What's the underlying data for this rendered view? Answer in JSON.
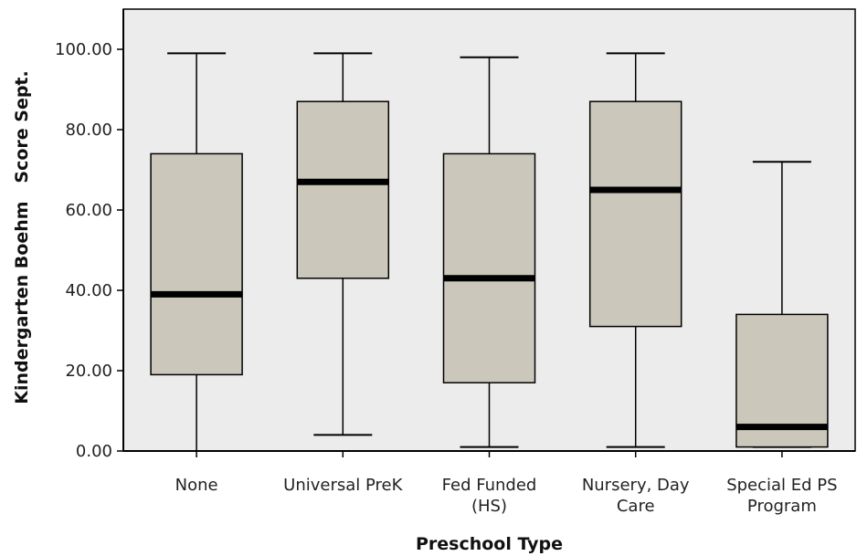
{
  "chart_data": {
    "type": "boxplot",
    "xlabel": "Preschool Type",
    "ylabel": "Kindergarten Boehm   Score Sept.",
    "ylim": [
      0,
      110
    ],
    "yticks": [
      "0.00",
      "20.00",
      "40.00",
      "60.00",
      "80.00",
      "100.00"
    ],
    "grid": false,
    "categories": [
      [
        "None"
      ],
      [
        "Universal PreK"
      ],
      [
        "Fed Funded",
        "(HS)"
      ],
      [
        "Nursery, Day",
        "Care"
      ],
      [
        "Special Ed PS",
        "Program"
      ]
    ],
    "boxes": [
      {
        "min": 0,
        "q1": 19,
        "median": 39,
        "q3": 74,
        "max": 99
      },
      {
        "min": 4,
        "q1": 43,
        "median": 67,
        "q3": 87,
        "max": 99
      },
      {
        "min": 1,
        "q1": 17,
        "median": 43,
        "q3": 74,
        "max": 98
      },
      {
        "min": 1,
        "q1": 31,
        "median": 65,
        "q3": 87,
        "max": 99
      },
      {
        "min": 1,
        "q1": 1,
        "median": 6,
        "q3": 34,
        "max": 72
      }
    ],
    "colors": {
      "plot_background": "#ececec",
      "box_fill": "#cbc8bb",
      "line": "#000000"
    }
  }
}
